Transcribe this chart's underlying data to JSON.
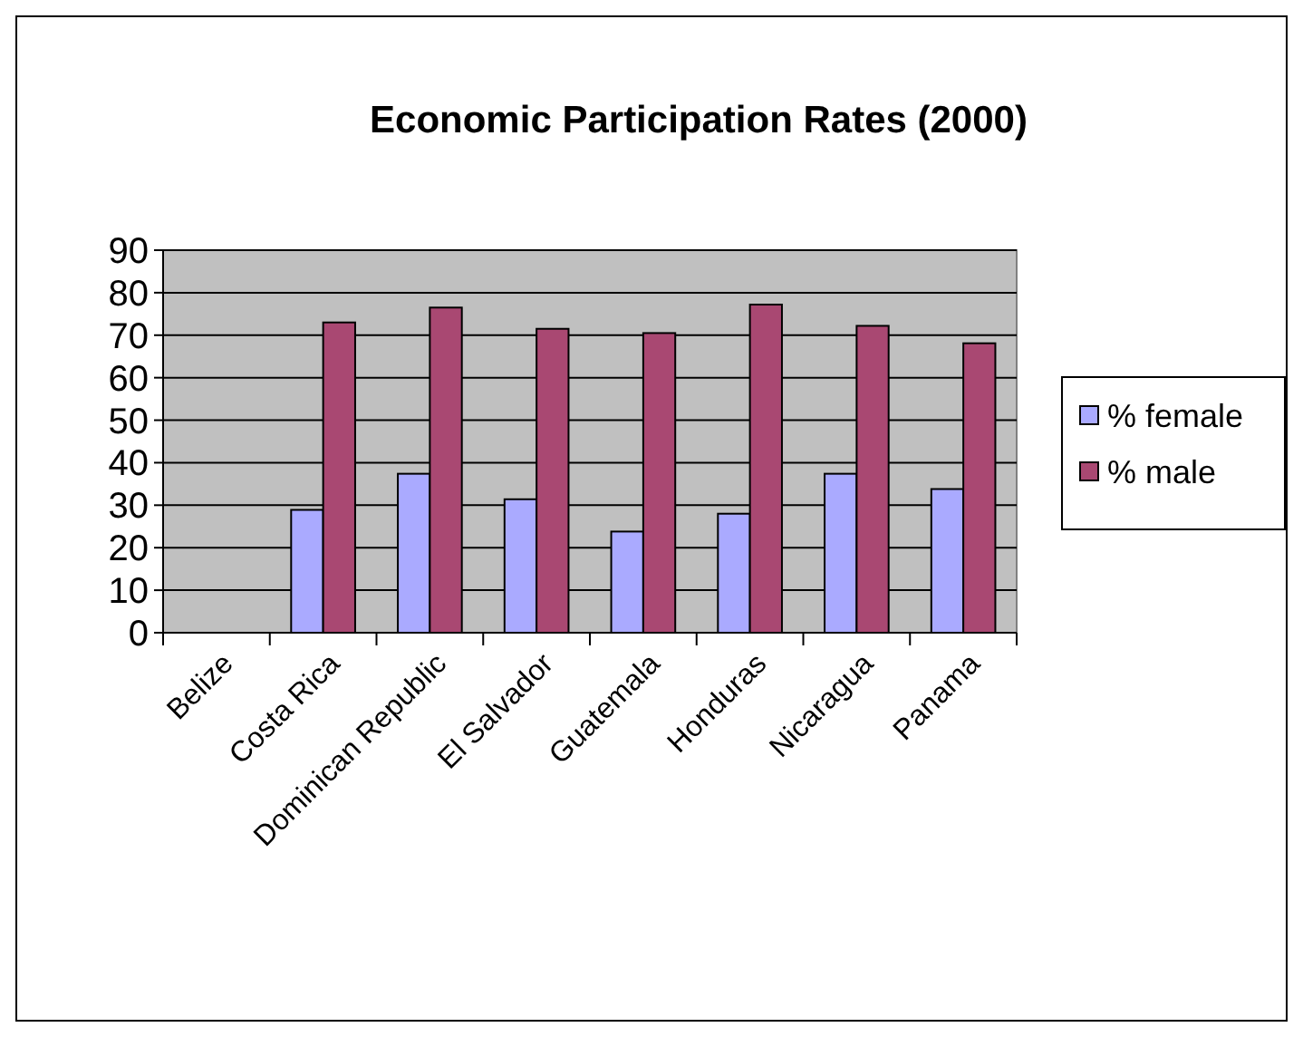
{
  "chart_data": {
    "type": "bar",
    "title": "Economic Participation Rates (2000)",
    "categories": [
      "Belize",
      "Costa Rica",
      "Dominican Republic",
      "El Salvador",
      "Guatemala",
      "Honduras",
      "Nicaragua",
      "Panama"
    ],
    "series": [
      {
        "name": "% female",
        "color": "#aaaaff",
        "values": [
          null,
          28.9,
          37.4,
          31.4,
          23.8,
          28.0,
          37.4,
          33.8
        ]
      },
      {
        "name": "% male",
        "color": "#a94872",
        "values": [
          null,
          73.0,
          76.5,
          71.5,
          70.5,
          77.2,
          72.2,
          68.1
        ]
      }
    ],
    "ylim": [
      0,
      90
    ],
    "yticks": [
      0,
      10,
      20,
      30,
      40,
      50,
      60,
      70,
      80,
      90
    ],
    "grid": "y",
    "legend": "right"
  }
}
